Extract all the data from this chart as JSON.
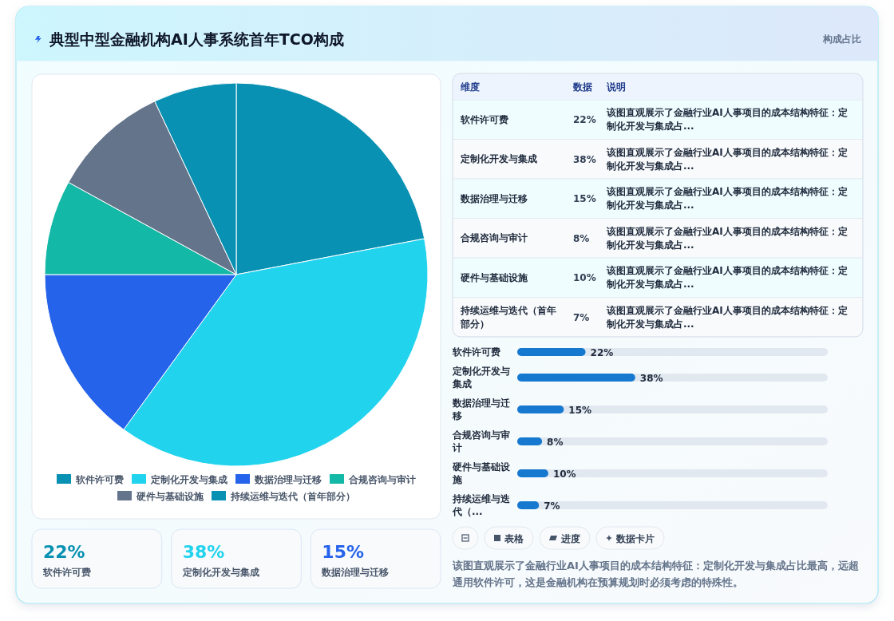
{
  "chart_data": [
    {
      "type": "pie",
      "title": "典型中型金融机构AI人事系统首年TCO构成",
      "categories": [
        "软件许可费",
        "定制化开发与集成",
        "数据治理与迁移",
        "合规咨询与审计",
        "硬件与基础设施",
        "持续运维与迭代（首年部分）"
      ],
      "values": [
        22,
        38,
        15,
        8,
        10,
        7
      ],
      "colors": [
        "#0891b2",
        "#22d3ee",
        "#2563eb",
        "#14b8a6",
        "#64748b",
        "#0891b2"
      ],
      "legend": "bottom"
    },
    {
      "type": "other",
      "title": "构成占比",
      "categories": [
        "软件许可费",
        "定制化开发与集成",
        "数据治理与迁移",
        "合规咨询与审计",
        "硬件与基础设施",
        "持续运维与迭代（首年部分）"
      ],
      "value_labels": [
        "22%",
        "38%",
        "15%",
        "8%",
        "10%",
        "7%"
      ],
      "annotations": [
        "维度",
        "数据",
        "说明",
        "该图直观展示了金融行业AI人事项目的成本结构特征：定制化开发与集成占...",
        "该图直观展示了金融行业AI人事项目的成本结构特征：定制化开发与集成占...",
        "该图直观展示了金融行业AI人事项目的成本结构特征：定制化开发与集成占...",
        "该图直观展示了金融行业AI人事项目的成本结构特征：定制化开发与集成占...",
        "该图直观展示了金融行业AI人事项目的成本结构特征：定制化开发与集成占...",
        "该图直观展示了金融行业AI人事项目的成本结构特征：定制化开发与集成占..."
      ]
    },
    {
      "type": "bar",
      "orientation": "horizontal",
      "categories": [
        "软件许可费",
        "定制化开发与集成",
        "数据治理与迁移",
        "合规咨询与审计",
        "硬件与基础设施",
        "持续运维与迭代（..."
      ],
      "values": [
        22,
        38,
        15,
        8,
        10,
        7
      ],
      "value_labels": [
        "22%",
        "38%",
        "15%",
        "8%",
        "10%",
        "7%"
      ],
      "color": "#1679cf",
      "xlim": [
        0,
        100
      ],
      "tick_labels": "y"
    },
    {
      "type": "other",
      "categories": [
        "软件许可费",
        "定制化开发与集成",
        "数据治理与迁移"
      ],
      "value_labels": [
        "22%",
        "38%",
        "15%"
      ]
    },
    {
      "type": "other",
      "categories": [
        null,
        "表格",
        "进度",
        "数据卡片"
      ],
      "annotations": [
        "该图直观展示了金融行业AI人事项目的成本结构特征：定制化开发与集成占比最高，远超通用软件许可，这是金融机构在预算规划时必须考虑的特殊性。"
      ]
    }
  ]
}
